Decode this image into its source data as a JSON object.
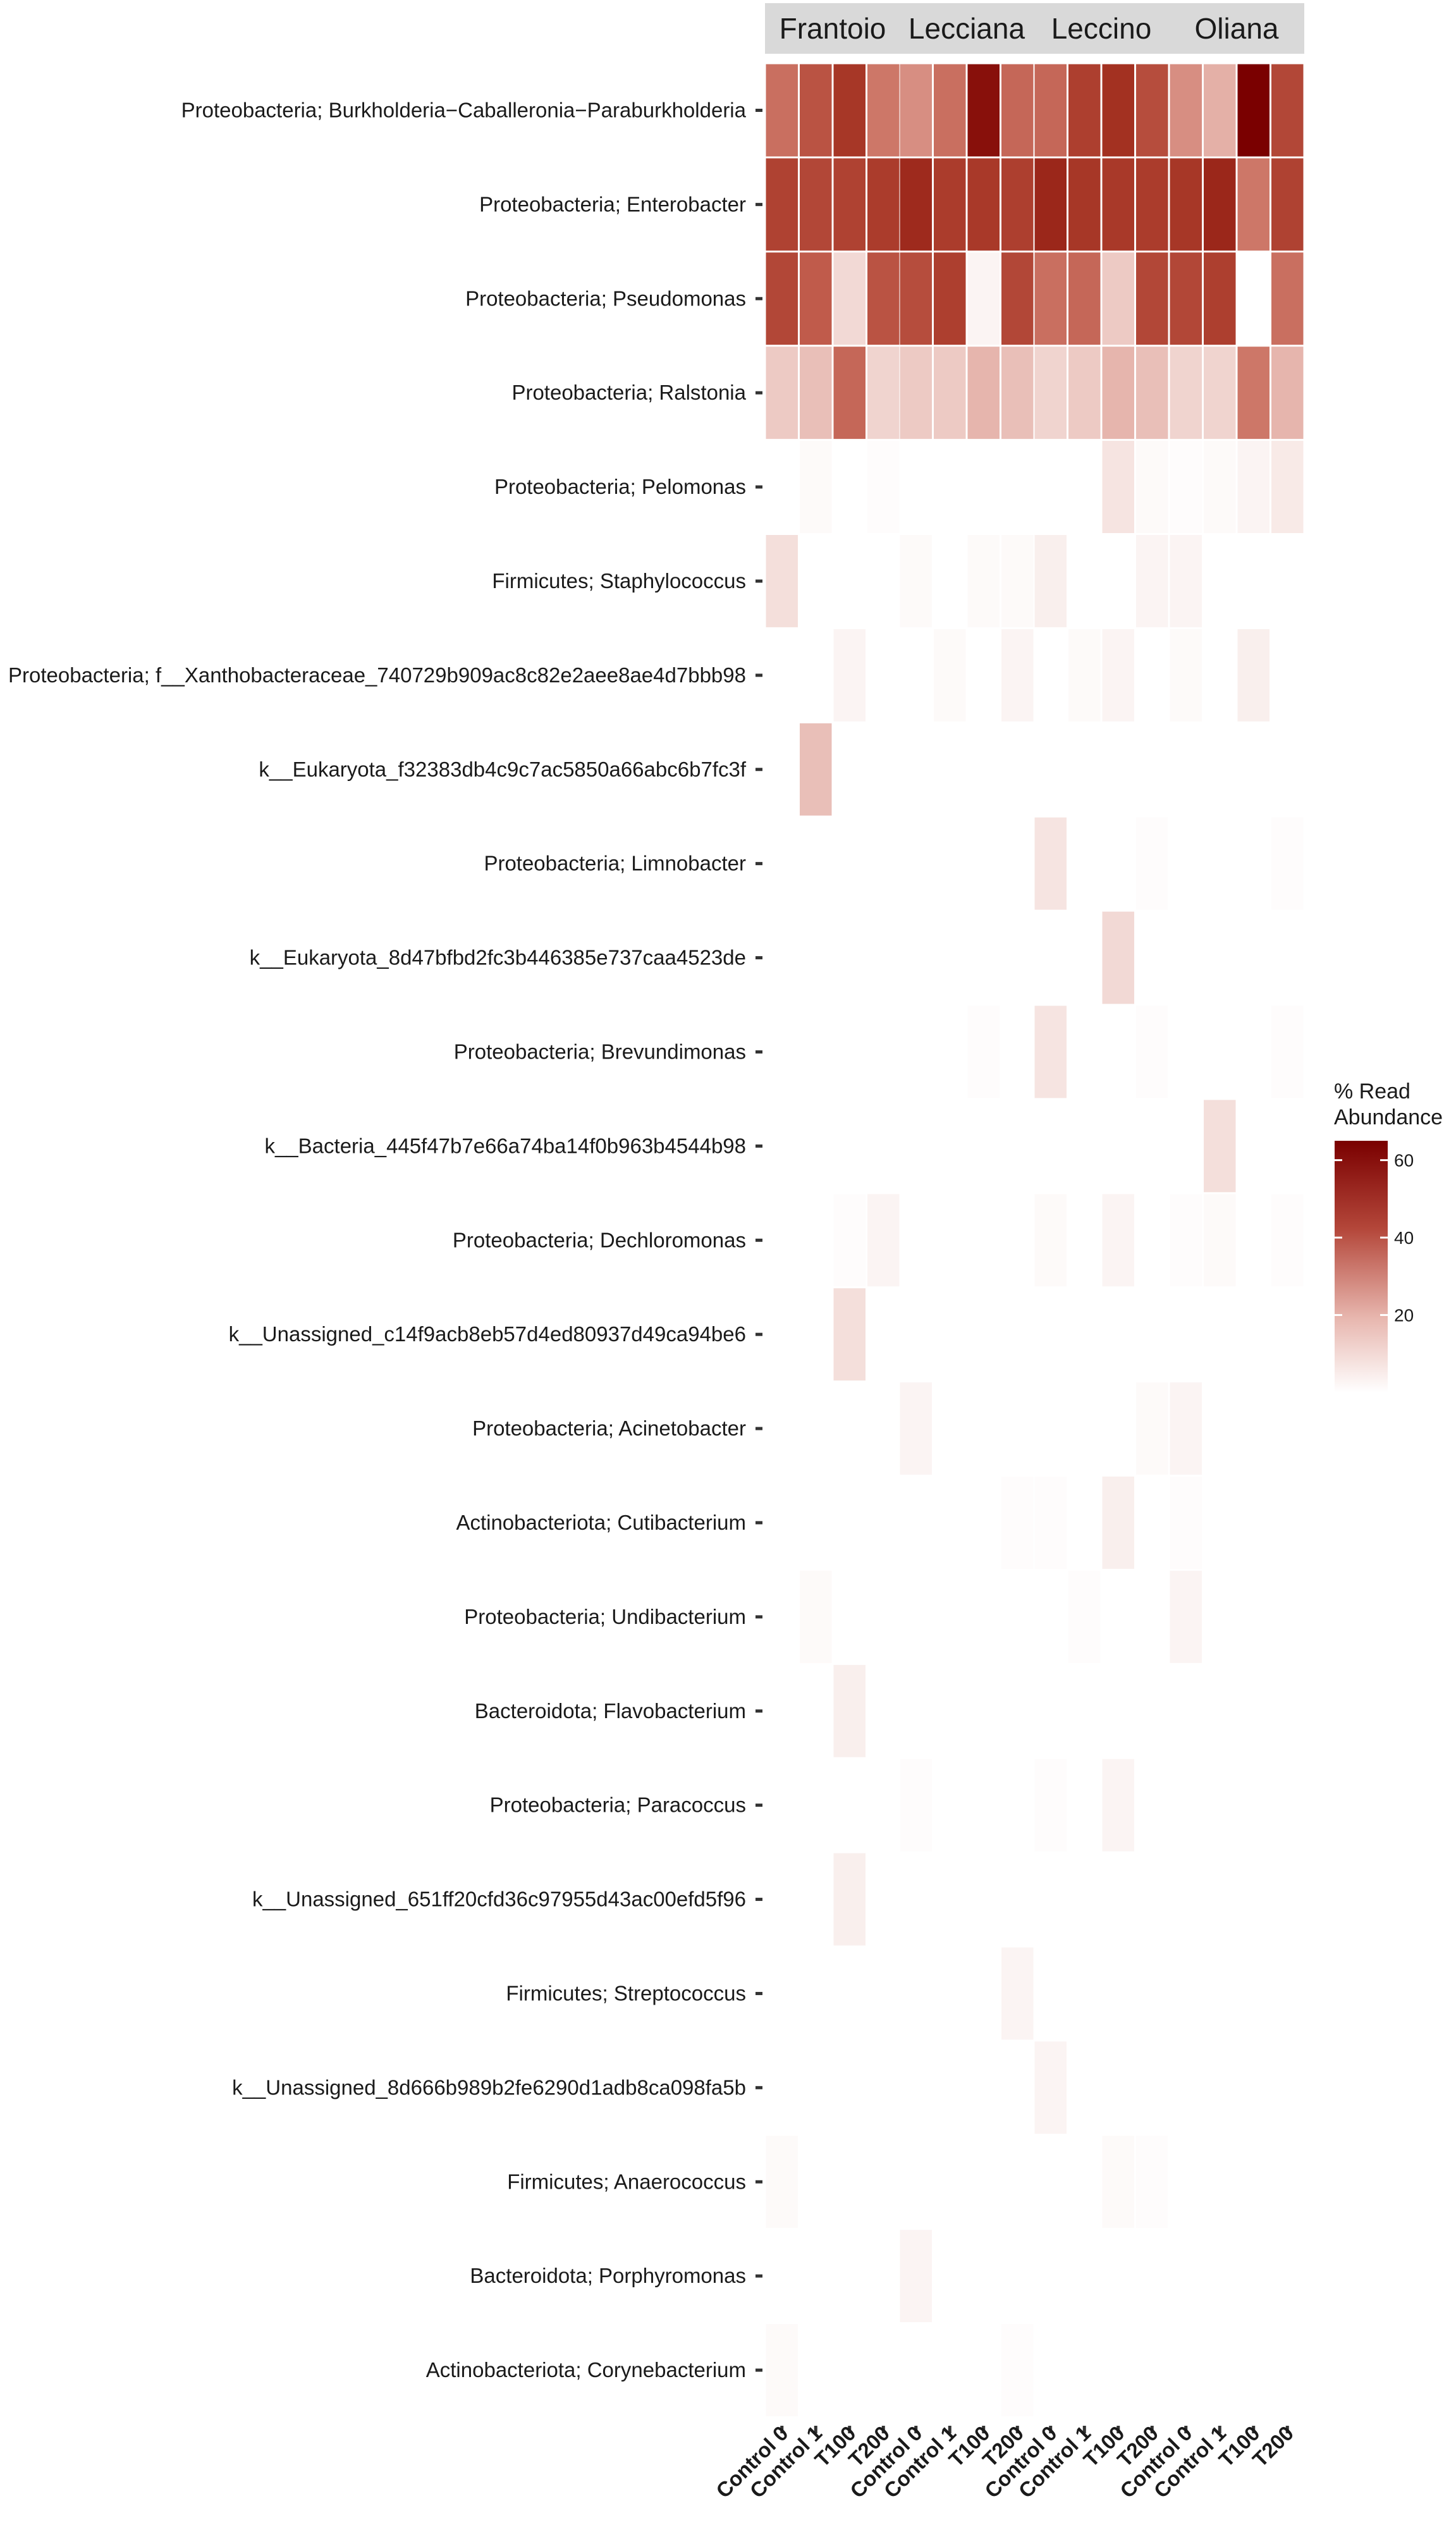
{
  "chart_data": {
    "type": "heatmap",
    "facets": [
      "Frantoio",
      "Lecciana",
      "Leccino",
      "Oliana"
    ],
    "columns": [
      "Control_0",
      "Control_1",
      "T100",
      "T200"
    ],
    "rows": [
      "Proteobacteria; Burkholderia−Caballeronia−Paraburkholderia",
      "Proteobacteria; Enterobacter",
      "Proteobacteria; Pseudomonas",
      "Proteobacteria; Ralstonia",
      "Proteobacteria; Pelomonas",
      "Firmicutes; Staphylococcus",
      "Proteobacteria; f__Xanthobacteraceae_740729b909ac8c82e2aee8ae4d7bbb98",
      "k__Eukaryota_f32383db4c9c7ac5850a66abc6b7fc3f",
      "Proteobacteria; Limnobacter",
      "k__Eukaryota_8d47bfbd2fc3b446385e737caa4523de",
      "Proteobacteria; Brevundimonas",
      "k__Bacteria_445f47b7e66a74ba14f0b963b4544b98",
      "Proteobacteria; Dechloromonas",
      "k__Unassigned_c14f9acb8eb57d4ed80937d49ca94be6",
      "Proteobacteria; Acinetobacter",
      "Actinobacteriota; Cutibacterium",
      "Proteobacteria; Undibacterium",
      "Bacteroidota; Flavobacterium",
      "Proteobacteria; Paracoccus",
      "k__Unassigned_651ff20cfd36c97955d43ac00efd5f96",
      "Firmicutes; Streptococcus",
      "k__Unassigned_8d666b989b2fe6290d1adb8ca098fa5b",
      "Firmicutes; Anaerococcus",
      "Bacteroidota; Porphyromonas",
      "Actinobacteriota; Corynebacterium"
    ],
    "values": [
      [
        [
          30,
          38,
          48,
          28
        ],
        [
          22,
          30,
          60,
          32
        ],
        [
          32,
          45,
          50,
          40
        ],
        [
          22,
          15,
          65,
          42
        ]
      ],
      [
        [
          44,
          42,
          44,
          46
        ],
        [
          52,
          46,
          47,
          45
        ],
        [
          53,
          48,
          47,
          46
        ],
        [
          48,
          53,
          28,
          44
        ]
      ],
      [
        [
          42,
          35,
          7,
          38
        ],
        [
          40,
          45,
          2,
          42
        ],
        [
          30,
          32,
          10,
          42
        ],
        [
          42,
          45,
          0,
          30
        ]
      ],
      [
        [
          10,
          12,
          32,
          8
        ],
        [
          10,
          10,
          14,
          12
        ],
        [
          8,
          10,
          14,
          12
        ],
        [
          8,
          8,
          28,
          14
        ]
      ],
      [
        [
          0,
          1,
          0,
          0.5
        ],
        [
          0,
          0,
          0,
          0
        ],
        [
          0,
          0,
          5,
          1
        ],
        [
          0.5,
          1,
          2,
          4
        ]
      ],
      [
        [
          6,
          0,
          0,
          0
        ],
        [
          1,
          0,
          1,
          1
        ],
        [
          3,
          0,
          0,
          2
        ],
        [
          2,
          0,
          0,
          0
        ]
      ],
      [
        [
          0,
          0,
          2,
          0
        ],
        [
          0,
          1,
          0,
          2
        ],
        [
          0,
          1,
          2,
          0
        ],
        [
          1,
          0,
          3,
          0
        ]
      ],
      [
        [
          0,
          12,
          0,
          0
        ],
        [
          0,
          0,
          0,
          0
        ],
        [
          0,
          0,
          0,
          0
        ],
        [
          0,
          0,
          0,
          0
        ]
      ],
      [
        [
          0,
          0,
          0,
          0
        ],
        [
          0,
          0,
          0,
          0
        ],
        [
          5,
          0,
          0,
          0.5
        ],
        [
          0,
          0,
          0,
          0.5
        ]
      ],
      [
        [
          0,
          0,
          0,
          0
        ],
        [
          0,
          0,
          0,
          0
        ],
        [
          0,
          0,
          7,
          0
        ],
        [
          0,
          0,
          0,
          0
        ]
      ],
      [
        [
          0,
          0,
          0,
          0
        ],
        [
          0,
          0,
          0.5,
          0
        ],
        [
          5,
          0,
          0,
          0.5
        ],
        [
          0,
          0,
          0,
          0.5
        ]
      ],
      [
        [
          0,
          0,
          0,
          0
        ],
        [
          0,
          0,
          0,
          0
        ],
        [
          0,
          0,
          0,
          0
        ],
        [
          0,
          6,
          0,
          0
        ]
      ],
      [
        [
          0,
          0,
          0.5,
          2
        ],
        [
          0,
          0,
          0,
          0
        ],
        [
          1,
          0,
          2,
          0
        ],
        [
          0.5,
          1,
          0,
          0.5
        ]
      ],
      [
        [
          0,
          0,
          6,
          0
        ],
        [
          0,
          0,
          0,
          0
        ],
        [
          0,
          0,
          0,
          0
        ],
        [
          0,
          0,
          0,
          0
        ]
      ],
      [
        [
          0,
          0,
          0,
          0
        ],
        [
          2,
          0,
          0,
          0
        ],
        [
          0,
          0,
          0,
          1
        ],
        [
          2,
          0,
          0,
          0
        ]
      ],
      [
        [
          0,
          0,
          0,
          0
        ],
        [
          0,
          0,
          0,
          0.5
        ],
        [
          0.5,
          0,
          3,
          0
        ],
        [
          0.5,
          0,
          0,
          0
        ]
      ],
      [
        [
          0,
          1,
          0,
          0
        ],
        [
          0,
          0,
          0,
          0
        ],
        [
          0,
          0.5,
          0,
          0
        ],
        [
          2,
          0,
          0,
          0
        ]
      ],
      [
        [
          0,
          0,
          3,
          0
        ],
        [
          0,
          0,
          0,
          0
        ],
        [
          0,
          0,
          0,
          0
        ],
        [
          0,
          0,
          0,
          0
        ]
      ],
      [
        [
          0,
          0,
          0,
          0
        ],
        [
          0.5,
          0,
          0,
          0
        ],
        [
          0.5,
          0,
          2,
          0
        ],
        [
          0,
          0,
          0,
          0
        ]
      ],
      [
        [
          0,
          0,
          3,
          0
        ],
        [
          0,
          0,
          0,
          0
        ],
        [
          0,
          0,
          0,
          0
        ],
        [
          0,
          0,
          0,
          0
        ]
      ],
      [
        [
          0,
          0,
          0,
          0
        ],
        [
          0,
          0,
          0,
          2
        ],
        [
          0,
          0,
          0,
          0
        ],
        [
          0,
          0,
          0,
          0
        ]
      ],
      [
        [
          0,
          0,
          0,
          0
        ],
        [
          0,
          0,
          0,
          0
        ],
        [
          2,
          0,
          0,
          0
        ],
        [
          0,
          0,
          0,
          0
        ]
      ],
      [
        [
          1,
          0,
          0,
          0
        ],
        [
          0,
          0,
          0,
          0
        ],
        [
          0,
          0,
          1,
          0.5
        ],
        [
          0,
          0,
          0,
          0
        ]
      ],
      [
        [
          0,
          0,
          0,
          0
        ],
        [
          2,
          0,
          0,
          0
        ],
        [
          0,
          0,
          0,
          0
        ],
        [
          0,
          0,
          0,
          0
        ]
      ],
      [
        [
          1,
          0,
          0,
          0
        ],
        [
          0,
          0,
          0,
          0.5
        ],
        [
          0,
          0,
          0,
          0
        ],
        [
          0,
          0,
          0,
          0
        ]
      ]
    ],
    "legend": {
      "title_lines": [
        "% Read",
        "Abundance"
      ],
      "range": [
        0,
        65
      ],
      "ticks": [
        20,
        40,
        60
      ],
      "color_low": "#ffffff",
      "color_high": "#7a0000"
    },
    "xlabel": "",
    "ylabel": ""
  }
}
